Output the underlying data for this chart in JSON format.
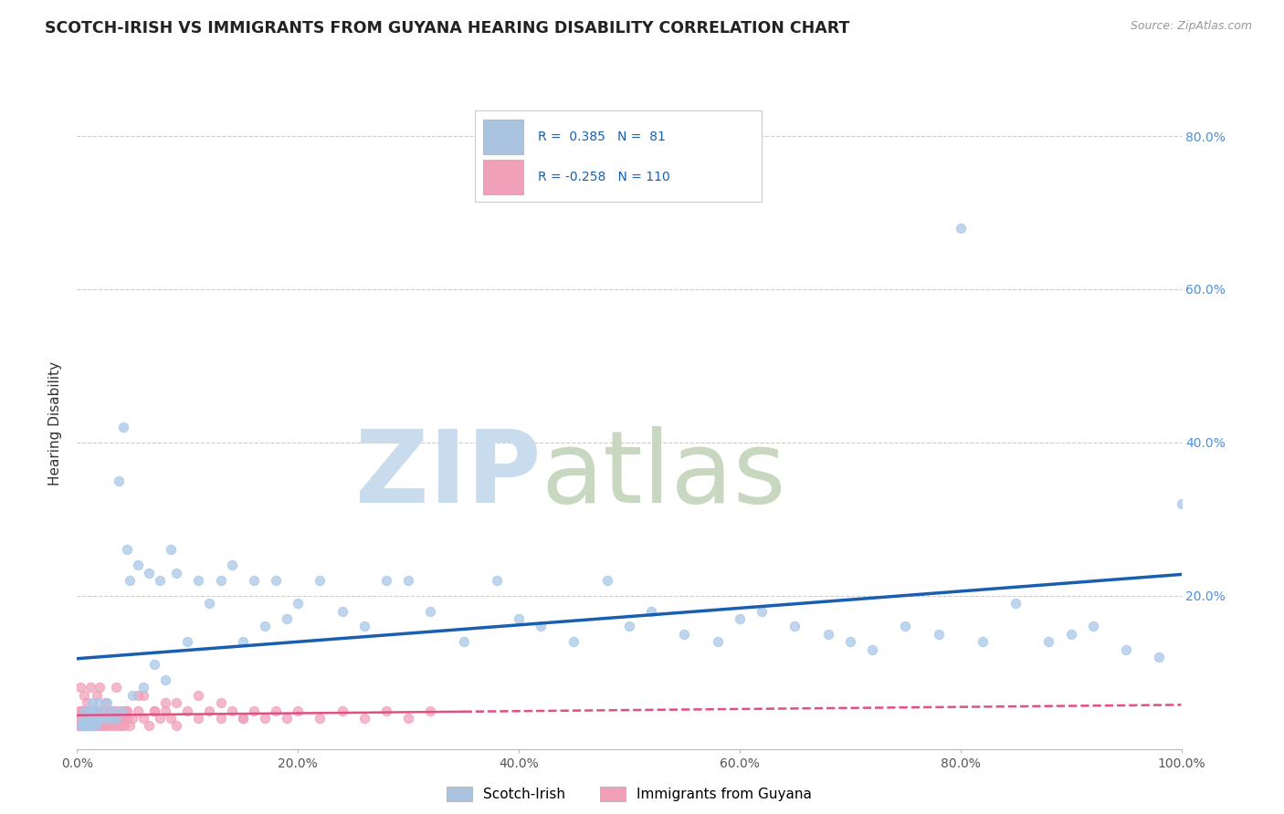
{
  "title": "SCOTCH-IRISH VS IMMIGRANTS FROM GUYANA HEARING DISABILITY CORRELATION CHART",
  "source": "Source: ZipAtlas.com",
  "ylabel": "Hearing Disability",
  "xlim": [
    0,
    1.0
  ],
  "ylim": [
    0,
    0.85
  ],
  "x_ticks": [
    0.0,
    0.2,
    0.4,
    0.6,
    0.8,
    1.0
  ],
  "x_tick_labels": [
    "0.0%",
    "20.0%",
    "40.0%",
    "60.0%",
    "80.0%",
    "100.0%"
  ],
  "y_tick_labels": [
    "20.0%",
    "40.0%",
    "60.0%",
    "80.0%"
  ],
  "y_ticks": [
    0.2,
    0.4,
    0.6,
    0.8
  ],
  "blue_color": "#aac4e0",
  "scatter_blue": "#a8c8e8",
  "scatter_pink": "#f0a0b8",
  "line_blue": "#1a5faf",
  "line_pink": "#e05080",
  "background_color": "#ffffff",
  "legend_label_1": "Scotch-Irish",
  "legend_label_2": "Immigrants from Guyana",
  "blue_r": 0.385,
  "blue_n": 81,
  "pink_r": -0.258,
  "pink_n": 110,
  "scotch_irish_x": [
    0.004,
    0.005,
    0.006,
    0.007,
    0.008,
    0.009,
    0.01,
    0.011,
    0.012,
    0.013,
    0.014,
    0.015,
    0.016,
    0.017,
    0.018,
    0.019,
    0.02,
    0.022,
    0.025,
    0.027,
    0.03,
    0.032,
    0.035,
    0.038,
    0.04,
    0.042,
    0.045,
    0.048,
    0.05,
    0.055,
    0.06,
    0.065,
    0.07,
    0.075,
    0.08,
    0.085,
    0.09,
    0.1,
    0.11,
    0.12,
    0.13,
    0.14,
    0.15,
    0.16,
    0.17,
    0.18,
    0.19,
    0.2,
    0.22,
    0.24,
    0.26,
    0.28,
    0.3,
    0.32,
    0.35,
    0.38,
    0.4,
    0.42,
    0.45,
    0.48,
    0.5,
    0.55,
    0.6,
    0.65,
    0.7,
    0.75,
    0.8,
    0.85,
    0.9,
    0.95,
    1.0,
    0.52,
    0.58,
    0.62,
    0.68,
    0.72,
    0.78,
    0.82,
    0.88,
    0.92,
    0.98
  ],
  "scotch_irish_y": [
    0.03,
    0.04,
    0.03,
    0.05,
    0.03,
    0.04,
    0.03,
    0.04,
    0.05,
    0.03,
    0.06,
    0.04,
    0.05,
    0.03,
    0.04,
    0.06,
    0.04,
    0.05,
    0.04,
    0.06,
    0.04,
    0.05,
    0.04,
    0.35,
    0.05,
    0.42,
    0.26,
    0.22,
    0.07,
    0.24,
    0.08,
    0.23,
    0.11,
    0.22,
    0.09,
    0.26,
    0.23,
    0.14,
    0.22,
    0.19,
    0.22,
    0.24,
    0.14,
    0.22,
    0.16,
    0.22,
    0.17,
    0.19,
    0.22,
    0.18,
    0.16,
    0.22,
    0.22,
    0.18,
    0.14,
    0.22,
    0.17,
    0.16,
    0.14,
    0.22,
    0.16,
    0.15,
    0.17,
    0.16,
    0.14,
    0.16,
    0.68,
    0.19,
    0.15,
    0.13,
    0.32,
    0.18,
    0.14,
    0.18,
    0.15,
    0.13,
    0.15,
    0.14,
    0.14,
    0.16,
    0.12
  ],
  "guyana_x": [
    0.001,
    0.001,
    0.002,
    0.002,
    0.003,
    0.003,
    0.004,
    0.004,
    0.005,
    0.005,
    0.006,
    0.006,
    0.007,
    0.007,
    0.008,
    0.008,
    0.009,
    0.009,
    0.01,
    0.01,
    0.011,
    0.011,
    0.012,
    0.012,
    0.013,
    0.013,
    0.014,
    0.014,
    0.015,
    0.015,
    0.016,
    0.016,
    0.017,
    0.017,
    0.018,
    0.018,
    0.019,
    0.019,
    0.02,
    0.02,
    0.021,
    0.022,
    0.023,
    0.024,
    0.025,
    0.026,
    0.027,
    0.028,
    0.029,
    0.03,
    0.031,
    0.032,
    0.033,
    0.034,
    0.035,
    0.036,
    0.037,
    0.038,
    0.039,
    0.04,
    0.041,
    0.042,
    0.043,
    0.044,
    0.045,
    0.048,
    0.05,
    0.055,
    0.06,
    0.065,
    0.07,
    0.075,
    0.08,
    0.085,
    0.09,
    0.1,
    0.11,
    0.12,
    0.13,
    0.14,
    0.15,
    0.16,
    0.17,
    0.18,
    0.19,
    0.2,
    0.22,
    0.24,
    0.26,
    0.28,
    0.3,
    0.32,
    0.15,
    0.07,
    0.04,
    0.02,
    0.08,
    0.055,
    0.035,
    0.025,
    0.018,
    0.012,
    0.009,
    0.006,
    0.003,
    0.13,
    0.11,
    0.09,
    0.06,
    0.045
  ],
  "guyana_y": [
    0.03,
    0.04,
    0.03,
    0.05,
    0.04,
    0.03,
    0.05,
    0.04,
    0.03,
    0.05,
    0.04,
    0.03,
    0.05,
    0.04,
    0.03,
    0.05,
    0.04,
    0.03,
    0.05,
    0.04,
    0.03,
    0.05,
    0.04,
    0.03,
    0.05,
    0.04,
    0.03,
    0.05,
    0.04,
    0.03,
    0.05,
    0.04,
    0.03,
    0.05,
    0.04,
    0.03,
    0.05,
    0.04,
    0.03,
    0.04,
    0.05,
    0.04,
    0.03,
    0.05,
    0.04,
    0.03,
    0.05,
    0.04,
    0.03,
    0.04,
    0.05,
    0.04,
    0.03,
    0.05,
    0.04,
    0.03,
    0.05,
    0.04,
    0.03,
    0.04,
    0.05,
    0.04,
    0.03,
    0.05,
    0.04,
    0.03,
    0.04,
    0.05,
    0.04,
    0.03,
    0.05,
    0.04,
    0.05,
    0.04,
    0.03,
    0.05,
    0.04,
    0.05,
    0.04,
    0.05,
    0.04,
    0.05,
    0.04,
    0.05,
    0.04,
    0.05,
    0.04,
    0.05,
    0.04,
    0.05,
    0.04,
    0.05,
    0.04,
    0.05,
    0.04,
    0.08,
    0.06,
    0.07,
    0.08,
    0.06,
    0.07,
    0.08,
    0.06,
    0.07,
    0.08,
    0.06,
    0.07,
    0.06,
    0.07,
    0.05
  ]
}
